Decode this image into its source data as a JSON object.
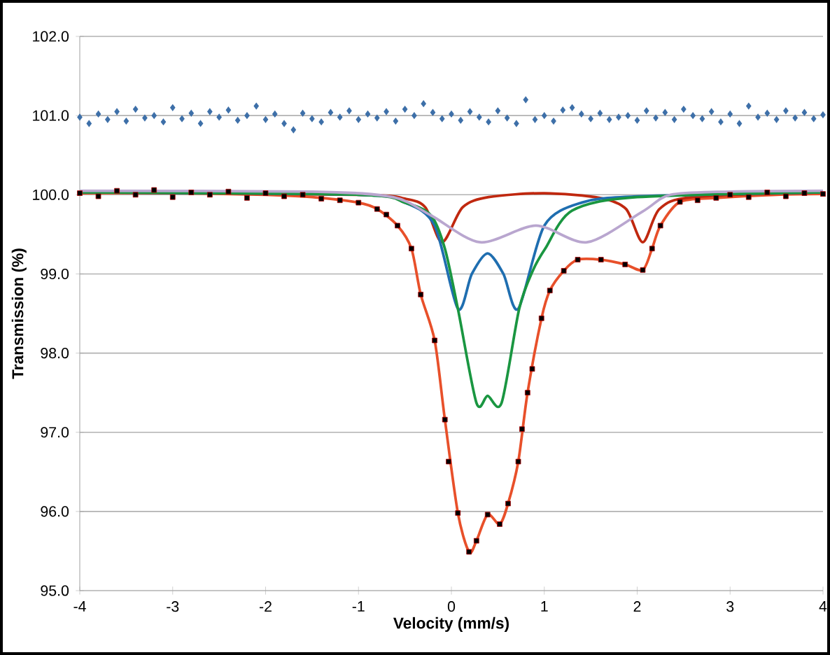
{
  "chart_data": {
    "type": "line",
    "xlabel": "Velocity (mm/s)",
    "ylabel": "Transmission (%)",
    "xlim": [
      -4,
      4
    ],
    "xticks": [
      -4,
      -3,
      -2,
      -1,
      0,
      1,
      2,
      3,
      4
    ],
    "ylim": [
      95,
      102
    ],
    "yticks": [
      {
        "value": 95,
        "label": "95.0"
      },
      {
        "value": 96,
        "label": "96.0"
      },
      {
        "value": 97,
        "label": "97.0"
      },
      {
        "value": 98,
        "label": "98.0"
      },
      {
        "value": 99,
        "label": "99.0"
      },
      {
        "value": 100,
        "label": "100.0"
      },
      {
        "value": 101,
        "label": "101.0"
      },
      {
        "value": 102,
        "label": "102.0"
      }
    ],
    "grid": "y",
    "legend": false,
    "series": [
      {
        "type": "scatter",
        "marker": "diamond",
        "color": "#3d6fa8",
        "x": [
          -4.0,
          -3.9,
          -3.8,
          -3.7,
          -3.6,
          -3.5,
          -3.4,
          -3.3,
          -3.2,
          -3.1,
          -3.0,
          -2.9,
          -2.8,
          -2.7,
          -2.6,
          -2.5,
          -2.4,
          -2.3,
          -2.2,
          -2.1,
          -2.0,
          -1.9,
          -1.8,
          -1.7,
          -1.6,
          -1.5,
          -1.4,
          -1.3,
          -1.2,
          -1.1,
          -1.0,
          -0.9,
          -0.8,
          -0.7,
          -0.6,
          -0.5,
          -0.4,
          -0.3,
          -0.2,
          -0.1,
          0.0,
          0.1,
          0.2,
          0.3,
          0.4,
          0.5,
          0.6,
          0.7,
          0.8,
          0.9,
          1.0,
          1.1,
          1.2,
          1.3,
          1.4,
          1.5,
          1.6,
          1.7,
          1.8,
          1.9,
          2.0,
          2.1,
          2.2,
          2.3,
          2.4,
          2.5,
          2.6,
          2.7,
          2.8,
          2.9,
          3.0,
          3.1,
          3.2,
          3.3,
          3.4,
          3.5,
          3.6,
          3.7,
          3.8,
          3.9,
          4.0
        ],
        "values": [
          100.98,
          100.9,
          101.02,
          100.95,
          101.05,
          100.93,
          101.08,
          100.97,
          101.0,
          100.92,
          101.1,
          100.96,
          101.03,
          100.9,
          101.05,
          100.98,
          101.07,
          100.94,
          101.0,
          101.12,
          100.95,
          101.02,
          100.9,
          100.82,
          101.03,
          100.96,
          100.92,
          101.04,
          100.98,
          101.06,
          100.95,
          101.02,
          100.97,
          101.05,
          100.93,
          101.08,
          101.0,
          101.15,
          101.04,
          100.96,
          101.02,
          100.94,
          101.05,
          100.98,
          100.92,
          101.06,
          100.97,
          100.9,
          101.2,
          100.95,
          101.0,
          100.93,
          101.07,
          101.1,
          101.02,
          100.96,
          101.03,
          100.95,
          100.98,
          101.0,
          100.94,
          101.06,
          100.97,
          101.04,
          100.95,
          101.08,
          101.0,
          100.96,
          101.05,
          100.92,
          101.02,
          100.9,
          101.12,
          100.98,
          101.03,
          100.95,
          101.06,
          100.97,
          101.04,
          100.96,
          101.01
        ]
      },
      {
        "type": "scatter",
        "marker": "square",
        "color": "#000000",
        "x": [
          -4.0,
          -3.8,
          -3.6,
          -3.4,
          -3.2,
          -3.0,
          -2.8,
          -2.6,
          -2.4,
          -2.2,
          -2.0,
          -1.8,
          -1.6,
          -1.4,
          -1.2,
          -1.0,
          -0.8,
          -0.7,
          -0.58,
          -0.43,
          -0.33,
          -0.18,
          -0.07,
          -0.03,
          0.07,
          0.19,
          0.27,
          0.39,
          0.52,
          0.61,
          0.72,
          0.76,
          0.82,
          0.87,
          0.97,
          1.06,
          1.21,
          1.36,
          1.61,
          1.87,
          2.06,
          2.16,
          2.25,
          2.46,
          2.65,
          2.85,
          3.0,
          3.2,
          3.4,
          3.6,
          3.8,
          4.0
        ],
        "values": [
          100.02,
          99.98,
          100.05,
          100.0,
          100.06,
          99.97,
          100.03,
          100.0,
          100.04,
          99.96,
          100.02,
          99.98,
          100.0,
          99.95,
          99.93,
          99.9,
          99.82,
          99.75,
          99.61,
          99.32,
          98.74,
          98.16,
          97.16,
          96.63,
          95.98,
          95.49,
          95.63,
          95.96,
          95.84,
          96.1,
          96.63,
          97.04,
          97.5,
          97.8,
          98.44,
          98.79,
          99.04,
          99.18,
          99.18,
          99.12,
          99.05,
          99.32,
          99.61,
          99.91,
          99.93,
          99.96,
          100.0,
          99.97,
          100.03,
          99.98,
          100.02,
          100.01
        ]
      },
      {
        "color": "#e8502a",
        "x": [
          -4.0,
          -3.0,
          -2.0,
          -1.5,
          -1.0,
          -0.8,
          -0.58,
          -0.43,
          -0.33,
          -0.18,
          -0.07,
          0.07,
          0.19,
          0.27,
          0.39,
          0.52,
          0.61,
          0.72,
          0.82,
          0.97,
          1.06,
          1.21,
          1.36,
          1.61,
          1.87,
          2.06,
          2.16,
          2.25,
          2.46,
          2.85,
          3.5,
          4.0
        ],
        "values": [
          100.02,
          100.02,
          100.0,
          99.97,
          99.9,
          99.82,
          99.61,
          99.32,
          98.74,
          98.16,
          97.16,
          95.98,
          95.49,
          95.63,
          95.96,
          95.84,
          96.1,
          96.63,
          97.5,
          98.44,
          98.79,
          99.04,
          99.18,
          99.18,
          99.12,
          99.05,
          99.32,
          99.61,
          99.91,
          99.96,
          100.0,
          100.01
        ]
      },
      {
        "color": "#c0280f",
        "x": [
          -4.0,
          -1.0,
          -0.5,
          -0.28,
          -0.1,
          0.12,
          0.4,
          1.0,
          1.6,
          1.88,
          2.06,
          2.24,
          2.6,
          4.0
        ],
        "values": [
          100.03,
          100.0,
          99.95,
          99.84,
          99.4,
          99.84,
          99.97,
          100.02,
          99.96,
          99.82,
          99.4,
          99.82,
          99.97,
          100.03
        ]
      },
      {
        "color": "#1f6eb0",
        "x": [
          -4.0,
          -1.0,
          -0.5,
          -0.18,
          0.07,
          0.22,
          0.39,
          0.56,
          0.72,
          1.0,
          1.4,
          2.0,
          4.0
        ],
        "values": [
          100.03,
          100.0,
          99.9,
          99.61,
          98.56,
          99.0,
          99.26,
          99.0,
          98.56,
          99.61,
          99.9,
          99.98,
          100.03
        ]
      },
      {
        "color": "#1a9641",
        "x": [
          -4.0,
          -1.0,
          -0.5,
          -0.22,
          -0.07,
          0.07,
          0.27,
          0.39,
          0.54,
          0.73,
          0.88,
          1.01,
          1.3,
          2.0,
          4.0
        ],
        "values": [
          100.03,
          100.0,
          99.9,
          99.74,
          99.32,
          98.56,
          97.37,
          97.46,
          97.37,
          98.56,
          99.05,
          99.32,
          99.8,
          99.97,
          100.03
        ]
      },
      {
        "color": "#b9a6cf",
        "x": [
          -4.0,
          -1.5,
          -0.63,
          -0.22,
          0.31,
          0.91,
          1.46,
          2.06,
          2.36,
          3.0,
          4.0
        ],
        "values": [
          100.05,
          100.04,
          99.97,
          99.74,
          99.4,
          99.61,
          99.4,
          99.79,
          100.0,
          100.04,
          100.05
        ]
      }
    ]
  }
}
